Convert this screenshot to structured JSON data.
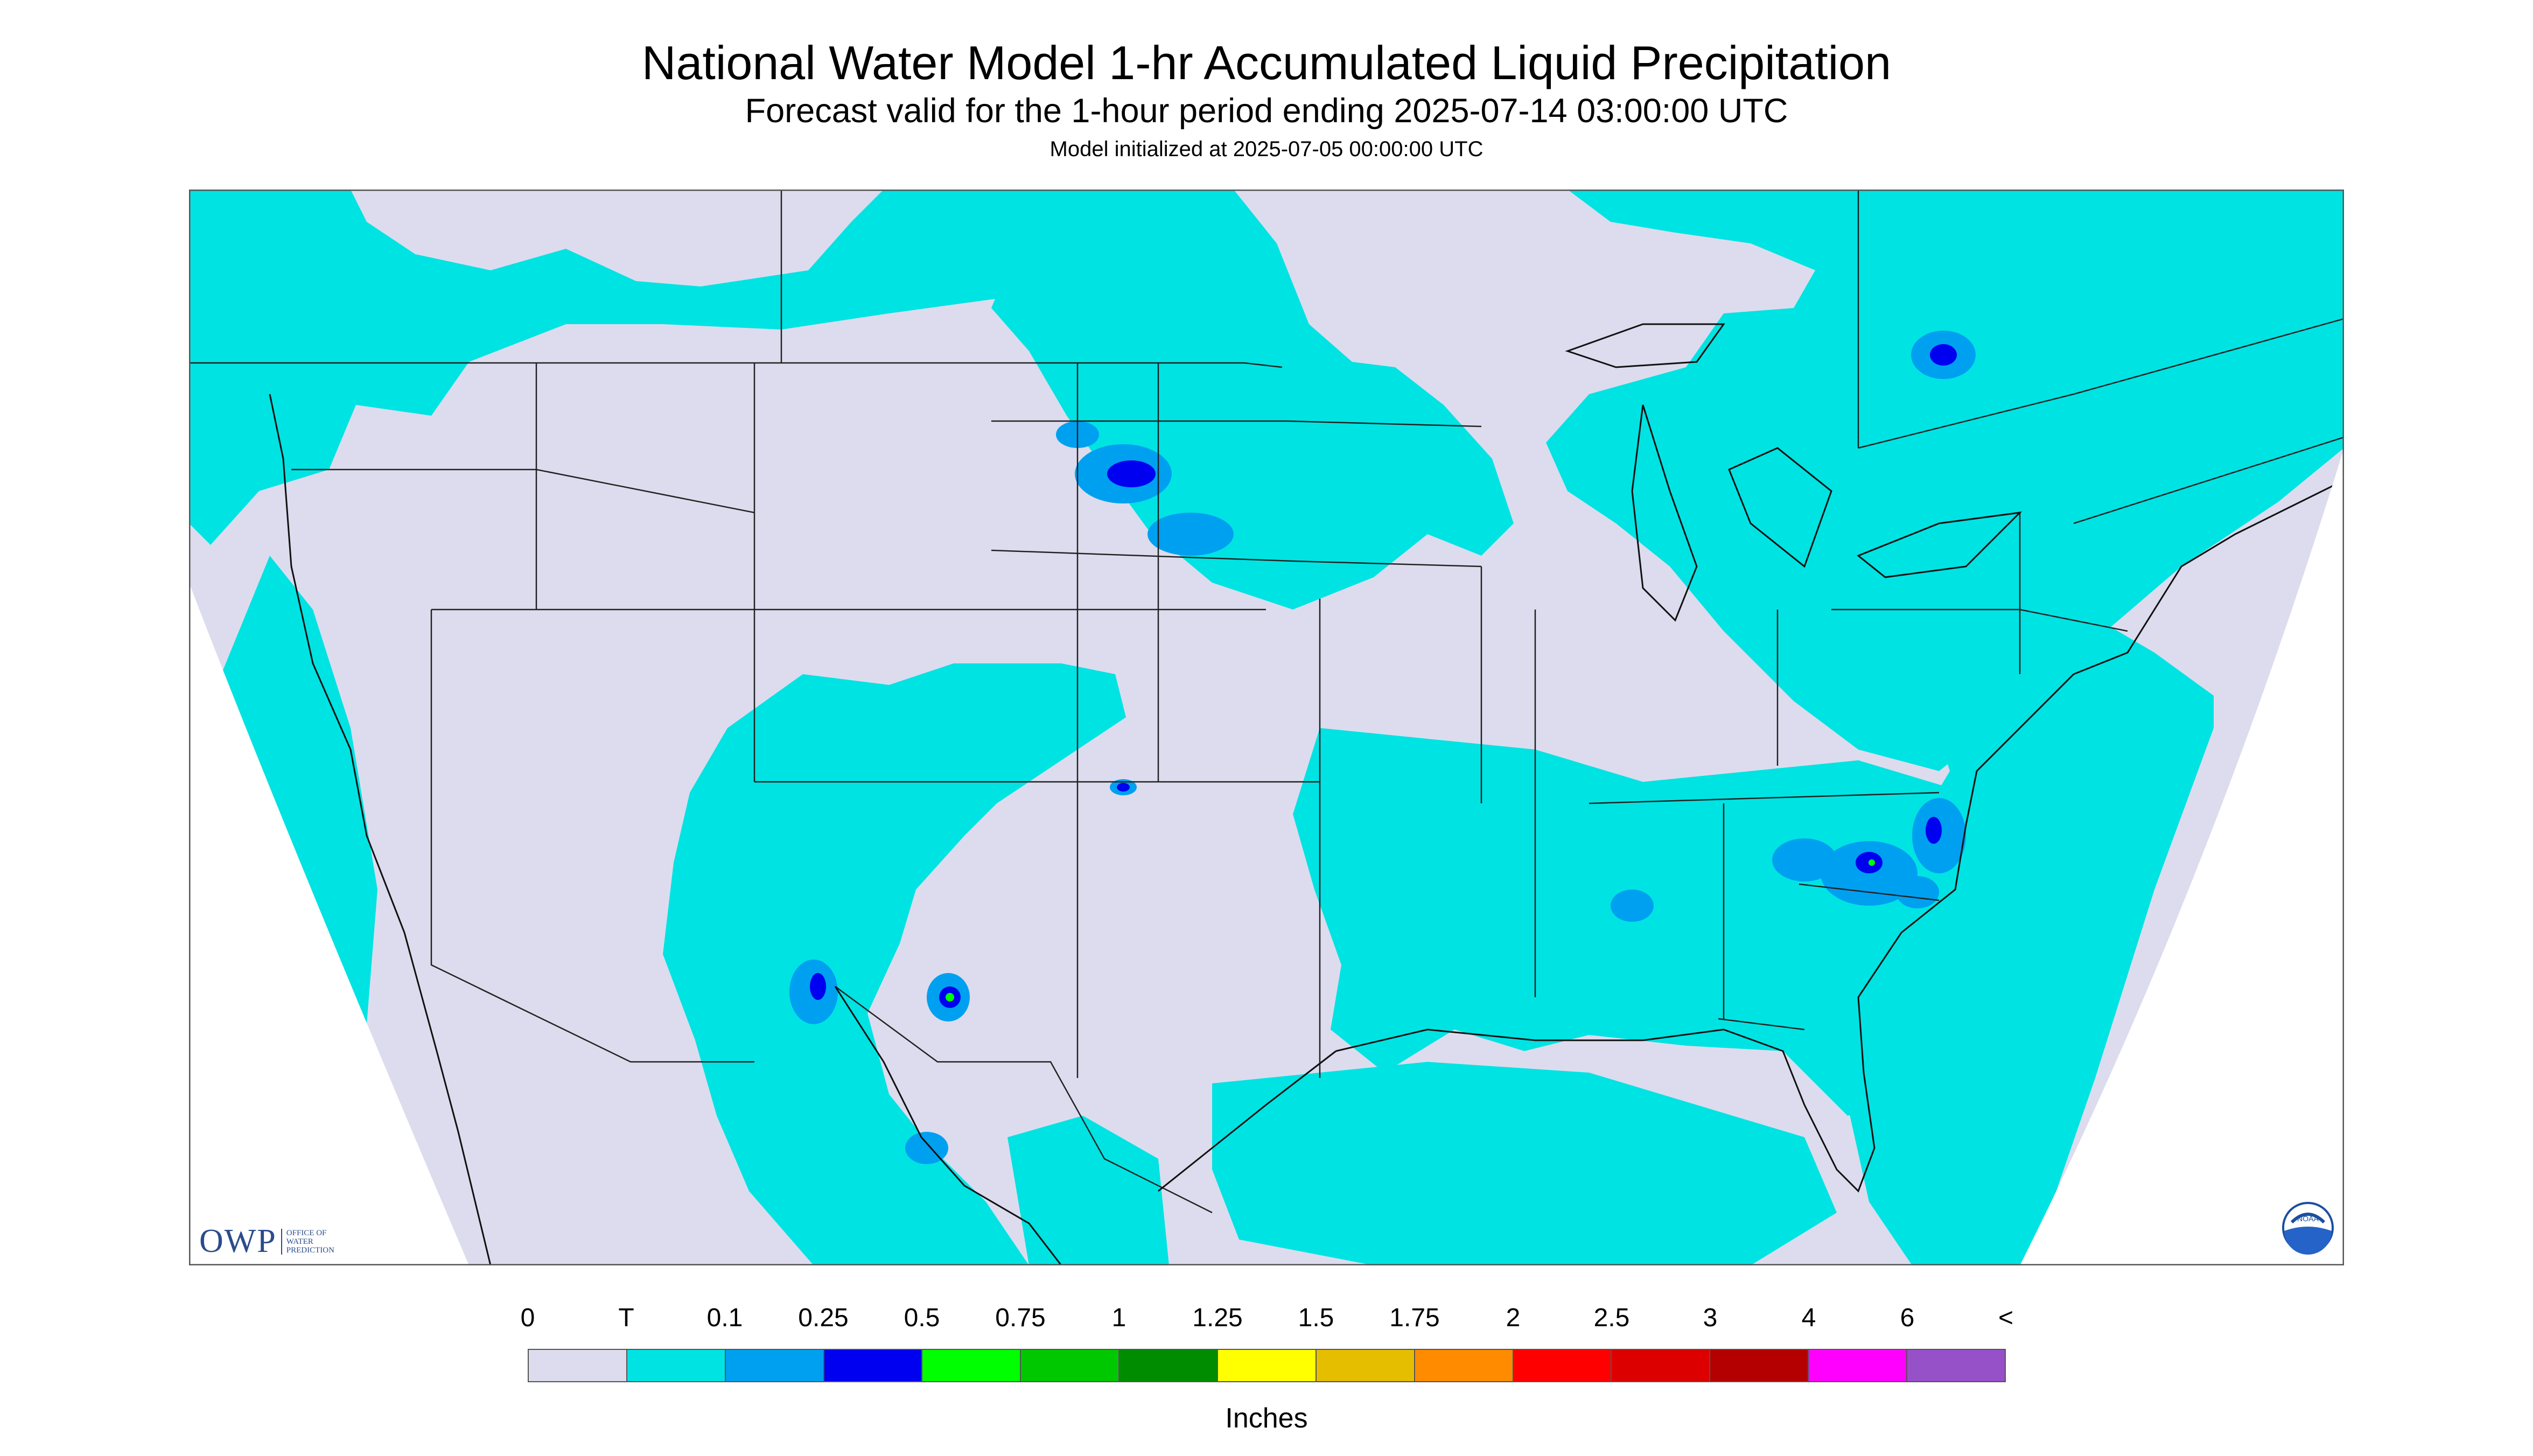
{
  "title": "National Water Model 1-hr Accumulated Liquid Precipitation",
  "subtitle": "Forecast valid for the 1-hour period ending 2025-07-14 03:00:00 UTC",
  "subsubtitle": "Model initialized at 2025-07-05 00:00:00 UTC",
  "legend": {
    "labels": [
      "0",
      "T",
      "0.1",
      "0.25",
      "0.5",
      "0.75",
      "1",
      "1.25",
      "1.5",
      "1.75",
      "2",
      "2.5",
      "3",
      "4",
      "6",
      "<"
    ],
    "colors": [
      "#dcdcee",
      "#00e3e3",
      "#00a0f0",
      "#0000f0",
      "#00ff00",
      "#00c800",
      "#008c00",
      "#ffff00",
      "#e6be00",
      "#ff8c00",
      "#ff0000",
      "#dc0000",
      "#b40000",
      "#ff00ff",
      "#9650c8"
    ],
    "units": "Inches"
  },
  "logos": {
    "owp": "OWP",
    "owp_sub": [
      "OFFICE OF",
      "WATER",
      "PREDICTION"
    ],
    "noaa": "NOAA"
  },
  "map": {
    "background_color": "#dcdcee",
    "trace_color": "#00e3e3",
    "light_color": "#00a0f0",
    "moderate_color": "#0000f0",
    "boundary_color": "#222222"
  }
}
